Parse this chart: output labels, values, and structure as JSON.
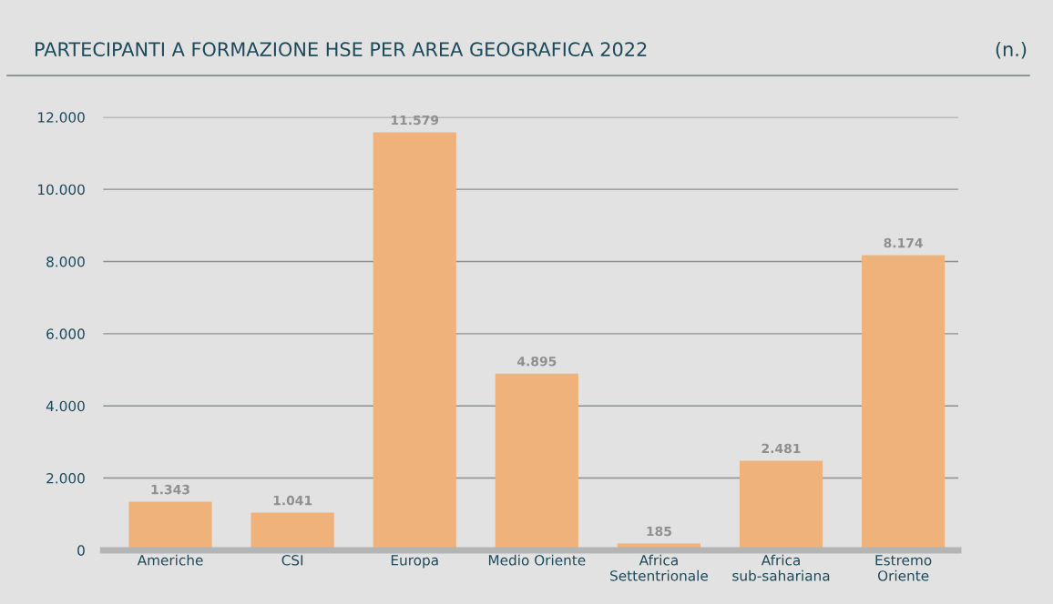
{
  "chart_data": {
    "type": "bar",
    "title": "PARTECIPANTI A FORMAZIONE HSE PER AREA GEOGRAFICA 2022",
    "annotations": [
      "(n.)"
    ],
    "categories": [
      "Americhe",
      "CSI",
      "Europa",
      "Medio Oriente",
      "Africa\nSettentrionale",
      "Africa\nsub-sahariana",
      "Estremo\nOriente"
    ],
    "values": [
      1343,
      1041,
      11579,
      4895,
      185,
      2481,
      8174
    ],
    "value_labels": [
      "1.343",
      "1.041",
      "11.579",
      "4.895",
      "185",
      "2.481",
      "8.174"
    ],
    "color": "#efb27b",
    "ylim": [
      0,
      12000
    ],
    "yticks": [
      {
        "value": 0,
        "label": "0"
      },
      {
        "value": 2000,
        "label": "2.000"
      },
      {
        "value": 4000,
        "label": "4.000"
      },
      {
        "value": 6000,
        "label": "6.000"
      },
      {
        "value": 8000,
        "label": "8.000"
      },
      {
        "value": 10000,
        "label": "10.000"
      },
      {
        "value": 12000,
        "label": "12.000"
      }
    ],
    "grid": "y",
    "legend": false
  }
}
